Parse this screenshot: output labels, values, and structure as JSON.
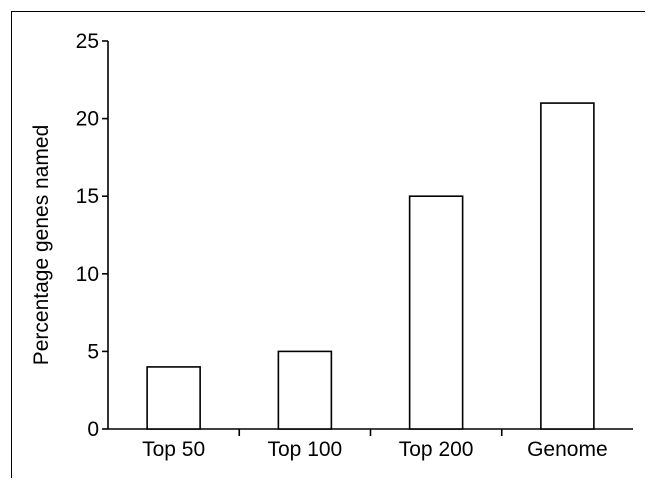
{
  "chart_data": {
    "type": "bar",
    "categories": [
      "Top 50",
      "Top 100",
      "Top 200",
      "Genome"
    ],
    "values": [
      4,
      5,
      15,
      21
    ],
    "title": "",
    "xlabel": "",
    "ylabel": "Percentage genes named",
    "ylim": [
      0,
      25
    ],
    "yticks": [
      "0",
      "5",
      "10",
      "15",
      "20",
      "25"
    ],
    "grid": false,
    "bar_fill": "#ffffff",
    "bar_stroke": "#000000"
  }
}
